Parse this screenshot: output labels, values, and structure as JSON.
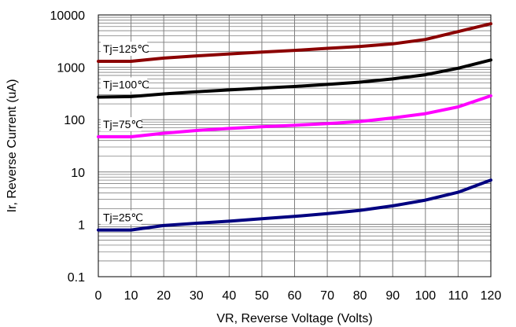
{
  "chart_data": {
    "type": "line",
    "xlabel": "VR, Reverse Voltage (Volts)",
    "ylabel": "Ir, Reverse Current (uA)",
    "xlim": [
      0,
      120
    ],
    "ylim": [
      0.1,
      10000
    ],
    "y_scale": "log",
    "grid": "on",
    "x_ticks": [
      "0",
      "10",
      "20",
      "30",
      "40",
      "50",
      "60",
      "70",
      "80",
      "90",
      "100",
      "110",
      "120"
    ],
    "y_ticks": [
      "0.1",
      "1",
      "10",
      "100",
      "1000",
      "10000"
    ],
    "series": [
      {
        "name": "Tj=125℃",
        "color": "#8b0000",
        "x": [
          0,
          10,
          20,
          30,
          40,
          50,
          60,
          70,
          80,
          90,
          100,
          110,
          120
        ],
        "y": [
          1300,
          1300,
          1500,
          1650,
          1800,
          1950,
          2100,
          2300,
          2500,
          2800,
          3400,
          4800,
          6800
        ]
      },
      {
        "name": "Tj=100℃",
        "color": "#000000",
        "x": [
          0,
          10,
          20,
          30,
          40,
          50,
          60,
          70,
          80,
          90,
          100,
          110,
          120
        ],
        "y": [
          270,
          275,
          310,
          340,
          370,
          400,
          430,
          470,
          520,
          600,
          720,
          960,
          1380
        ]
      },
      {
        "name": "Tj=75℃",
        "color": "#ff00ff",
        "x": [
          0,
          10,
          20,
          30,
          40,
          50,
          60,
          70,
          80,
          90,
          100,
          110,
          120
        ],
        "y": [
          47,
          47,
          55,
          62,
          68,
          73,
          78,
          84,
          92,
          108,
          130,
          175,
          285
        ]
      },
      {
        "name": "Tj=25℃",
        "color": "#000080",
        "x": [
          0,
          10,
          20,
          30,
          40,
          50,
          60,
          70,
          80,
          90,
          100,
          110,
          120
        ],
        "y": [
          0.78,
          0.78,
          0.95,
          1.05,
          1.15,
          1.28,
          1.42,
          1.6,
          1.85,
          2.25,
          2.9,
          4.1,
          7.0
        ]
      }
    ]
  }
}
